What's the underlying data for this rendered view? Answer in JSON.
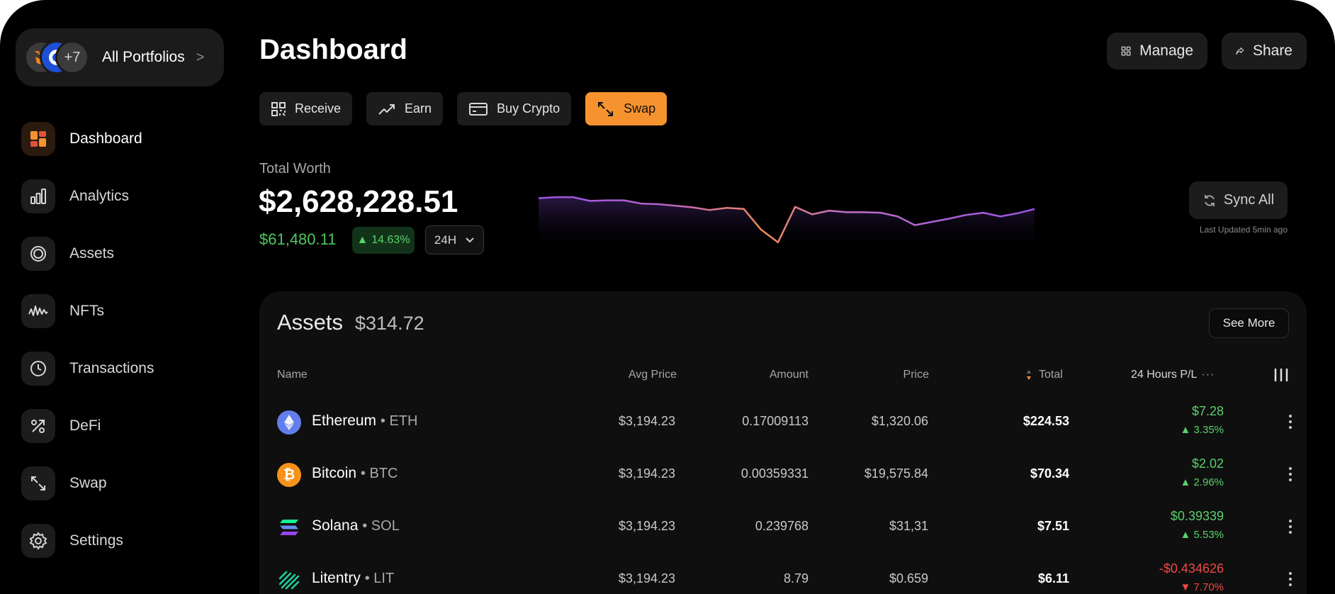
{
  "sidebar": {
    "portfolio": {
      "extra_count": "+7",
      "label": "All Portfolios",
      "chevron": ">"
    },
    "items": [
      {
        "label": "Dashboard",
        "icon": "dashboard-icon",
        "active": true
      },
      {
        "label": "Analytics",
        "icon": "analytics-icon"
      },
      {
        "label": "Assets",
        "icon": "assets-icon"
      },
      {
        "label": "NFTs",
        "icon": "nfts-icon"
      },
      {
        "label": "Transactions",
        "icon": "clock-icon"
      },
      {
        "label": "DeFi",
        "icon": "defi-icon"
      },
      {
        "label": "Swap",
        "icon": "swap-icon"
      },
      {
        "label": "Settings",
        "icon": "gear-icon"
      }
    ]
  },
  "header": {
    "title": "Dashboard",
    "manage_label": "Manage",
    "share_label": "Share"
  },
  "actions": [
    {
      "label": "Receive",
      "icon": "qr-icon"
    },
    {
      "label": "Earn",
      "icon": "trend-up-icon"
    },
    {
      "label": "Buy Crypto",
      "icon": "card-icon"
    },
    {
      "label": "Swap",
      "icon": "swap-icon",
      "primary": true
    }
  ],
  "worth": {
    "label": "Total Worth",
    "value": "$2,628,228.51",
    "change": "$61,480.11",
    "change_pct": "14.63%",
    "range": "24H",
    "sync_label": "Sync All",
    "last_updated": "Last Updated 5min ago"
  },
  "sparkline": {
    "values": [
      0.9,
      0.92,
      0.92,
      0.85,
      0.86,
      0.86,
      0.8,
      0.79,
      0.76,
      0.73,
      0.68,
      0.72,
      0.7,
      0.32,
      0.08,
      0.74,
      0.6,
      0.67,
      0.64,
      0.64,
      0.63,
      0.56,
      0.4,
      0.46,
      0.52,
      0.59,
      0.63,
      0.56,
      0.62,
      0.7
    ]
  },
  "colors": {
    "accent": "#f7932e",
    "positive": "#5ad06a",
    "negative": "#ef4a45",
    "line_purple": "#9a55e6",
    "line_orange": "#f28b52"
  },
  "assets": {
    "title": "Assets",
    "total": "$314.72",
    "see_more": "See More",
    "columns": {
      "name": "Name",
      "avg_price": "Avg Price",
      "amount": "Amount",
      "price": "Price",
      "total": "Total",
      "pl": "24 Hours P/L"
    },
    "rows": [
      {
        "name": "Ethereum",
        "symbol": "ETH",
        "icon": "ethereum-icon",
        "avg_price": "$3,194.23",
        "amount": "0.17009113",
        "price": "$1,320.06",
        "total": "$224.53",
        "pl_value": "$7.28",
        "pl_pct": "▲ 3.35%",
        "positive": true
      },
      {
        "name": "Bitcoin",
        "symbol": "BTC",
        "icon": "bitcoin-icon",
        "avg_price": "$3,194.23",
        "amount": "0.00359331",
        "price": "$19,575.84",
        "total": "$70.34",
        "pl_value": "$2.02",
        "pl_pct": "▲ 2.96%",
        "positive": true
      },
      {
        "name": "Solana",
        "symbol": "SOL",
        "icon": "solana-icon",
        "avg_price": "$3,194.23",
        "amount": "0.239768",
        "price": "$31,31",
        "total": "$7.51",
        "pl_value": "$0.39339",
        "pl_pct": "▲ 5.53%",
        "positive": true
      },
      {
        "name": "Litentry",
        "symbol": "LIT",
        "icon": "litentry-icon",
        "avg_price": "$3,194.23",
        "amount": "8.79",
        "price": "$0.659",
        "total": "$6.11",
        "pl_value": "-$0.434626",
        "pl_pct": "▼ 7.70%",
        "positive": false
      }
    ]
  }
}
